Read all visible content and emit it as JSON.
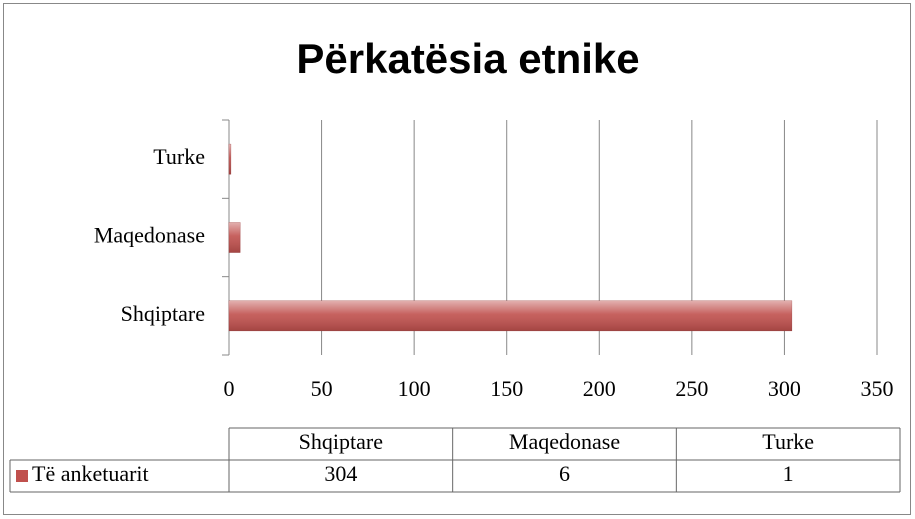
{
  "chart_data": {
    "type": "bar",
    "orientation": "horizontal",
    "title": "Përkatësia etnike",
    "categories": [
      "Shqiptare",
      "Maqedonase",
      "Turke"
    ],
    "series": [
      {
        "name": "Të anketuarit",
        "color": "#c0504d",
        "values": [
          304,
          6,
          1
        ]
      }
    ],
    "xlim": [
      0,
      350
    ],
    "xticks": [
      0,
      50,
      100,
      150,
      200,
      250,
      300,
      350
    ],
    "grid": true
  }
}
